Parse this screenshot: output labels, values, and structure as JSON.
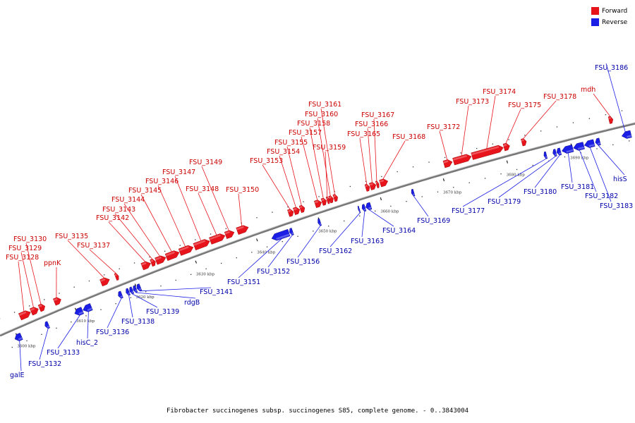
{
  "legend": [
    {
      "label": "Forward",
      "color": "#e8141c"
    },
    {
      "label": "Reverse",
      "color": "#1b1fe6"
    }
  ],
  "caption": "Fibrobacter succinogenes subsp. succinogenes S85, complete genome. - 0..3843004",
  "colors": {
    "forward": "#e8141c",
    "reverse": "#1b1fe6",
    "backbone": "#777777",
    "forward_label": "#cc0000",
    "reverse_label": "#0000aa"
  },
  "ruler": [
    {
      "label": "3600 kbp",
      "kbp": 3600
    },
    {
      "label": "3610 kbp",
      "kbp": 3610
    },
    {
      "label": "3620 kbp",
      "kbp": 3620
    },
    {
      "label": "3630 kbp",
      "kbp": 3630
    },
    {
      "label": "3640 kbp",
      "kbp": 3640
    },
    {
      "label": "3650 kbp",
      "kbp": 3650
    },
    {
      "label": "3660 kbp",
      "kbp": 3660
    },
    {
      "label": "3670 kbp",
      "kbp": 3670
    },
    {
      "label": "3680 kbp",
      "kbp": 3680
    },
    {
      "label": "3690 kbp",
      "kbp": 3690
    }
  ],
  "forward_genes": [
    {
      "name": "FSU_3128",
      "start": 3601.0,
      "end": 3602.8
    },
    {
      "name": "FSU_3129",
      "start": 3602.9,
      "end": 3604.1
    },
    {
      "name": "FSU_3130",
      "start": 3604.3,
      "end": 3605.2
    },
    {
      "name": "ppnK",
      "start": 3606.8,
      "end": 3607.9
    },
    {
      "name": "FSU_3135",
      "start": 3614.6,
      "end": 3616.0
    },
    {
      "name": "FSU_3137",
      "start": 3617.0,
      "end": 3617.5
    },
    {
      "name": "FSU_3142",
      "start": 3621.4,
      "end": 3622.8
    },
    {
      "name": "FSU_3143",
      "start": 3622.9,
      "end": 3623.6
    },
    {
      "name": "FSU_3144",
      "start": 3623.7,
      "end": 3625.3
    },
    {
      "name": "FSU_3145",
      "start": 3625.4,
      "end": 3627.5
    },
    {
      "name": "FSU_3146",
      "start": 3627.6,
      "end": 3629.8
    },
    {
      "name": "FSU_3147",
      "start": 3630.0,
      "end": 3632.5
    },
    {
      "name": "FSU_3148",
      "start": 3632.6,
      "end": 3635.0
    },
    {
      "name": "FSU_3149",
      "start": 3635.1,
      "end": 3636.5
    },
    {
      "name": "FSU_3150",
      "start": 3637.0,
      "end": 3638.8
    },
    {
      "name": "FSU_3153",
      "start": 3645.3,
      "end": 3646.1
    },
    {
      "name": "FSU_3154",
      "start": 3646.2,
      "end": 3647.1
    },
    {
      "name": "FSU_3155",
      "start": 3647.2,
      "end": 3647.9
    },
    {
      "name": "FSU_3157",
      "start": 3649.6,
      "end": 3650.6
    },
    {
      "name": "FSU_3158",
      "start": 3650.7,
      "end": 3651.4
    },
    {
      "name": "FSU_3159",
      "start": 3651.5,
      "end": 3651.9
    },
    {
      "name": "FSU_3160",
      "start": 3651.9,
      "end": 3652.5
    },
    {
      "name": "FSU_3161",
      "start": 3652.6,
      "end": 3653.2
    },
    {
      "name": "FSU_3165",
      "start": 3657.7,
      "end": 3658.3
    },
    {
      "name": "FSU_3166",
      "start": 3658.4,
      "end": 3659.3
    },
    {
      "name": "FSU_3167",
      "start": 3659.4,
      "end": 3659.8
    },
    {
      "name": "FSU_3168",
      "start": 3660.0,
      "end": 3661.2
    },
    {
      "name": "FSU_3172",
      "start": 3670.1,
      "end": 3671.4
    },
    {
      "name": "FSU_3173",
      "start": 3671.6,
      "end": 3674.4
    },
    {
      "name": "FSU_3174",
      "start": 3674.5,
      "end": 3679.4
    },
    {
      "name": "FSU_3175",
      "start": 3679.5,
      "end": 3680.4
    },
    {
      "name": "FSU_3178",
      "start": 3682.3,
      "end": 3683.0
    },
    {
      "name": "mdh",
      "start": 3695.8,
      "end": 3696.4
    }
  ],
  "reverse_genes": [
    {
      "name": "galE",
      "start": 3598.9,
      "end": 3600.0
    },
    {
      "name": "FSU_3132",
      "start": 3604.0,
      "end": 3604.6
    },
    {
      "name": "FSU_3133",
      "start": 3609.0,
      "end": 3610.3
    },
    {
      "name": "hisC_2",
      "start": 3610.4,
      "end": 3611.8
    },
    {
      "name": "FSU_3136",
      "start": 3616.3,
      "end": 3616.9
    },
    {
      "name": "FSU_3138",
      "start": 3617.6,
      "end": 3618.1
    },
    {
      "name": "FSU_3139",
      "start": 3618.2,
      "end": 3618.7
    },
    {
      "name": "rdgB",
      "start": 3618.8,
      "end": 3619.3
    },
    {
      "name": "FSU_3141",
      "start": 3619.4,
      "end": 3620.0
    },
    {
      "name": "FSU_3151",
      "start": 3641.6,
      "end": 3644.4
    },
    {
      "name": "FSU_3152",
      "start": 3644.5,
      "end": 3645.0
    },
    {
      "name": "FSU_3156",
      "start": 3649.1,
      "end": 3649.5
    },
    {
      "name": "FSU_3162",
      "start": 3655.6,
      "end": 3655.8
    },
    {
      "name": "FSU_3163",
      "start": 3656.2,
      "end": 3656.7
    },
    {
      "name": "FSU_3164",
      "start": 3656.8,
      "end": 3657.6
    },
    {
      "name": "FSU_3169",
      "start": 3664.1,
      "end": 3664.5
    },
    {
      "name": "FSU_3177",
      "start": 3685.0,
      "end": 3685.4
    },
    {
      "name": "FSU_3179",
      "start": 3686.4,
      "end": 3686.9
    },
    {
      "name": "FSU_3180",
      "start": 3687.0,
      "end": 3687.6
    },
    {
      "name": "FSU_3181",
      "start": 3687.8,
      "end": 3689.5
    },
    {
      "name": "FSU_3182",
      "start": 3689.6,
      "end": 3691.2
    },
    {
      "name": "FSU_3183",
      "start": 3691.3,
      "end": 3692.8
    },
    {
      "name": "hisS",
      "start": 3693.0,
      "end": 3693.7
    },
    {
      "name": "FSU_3186",
      "start": 3697.1,
      "end": 3698.5
    }
  ]
}
